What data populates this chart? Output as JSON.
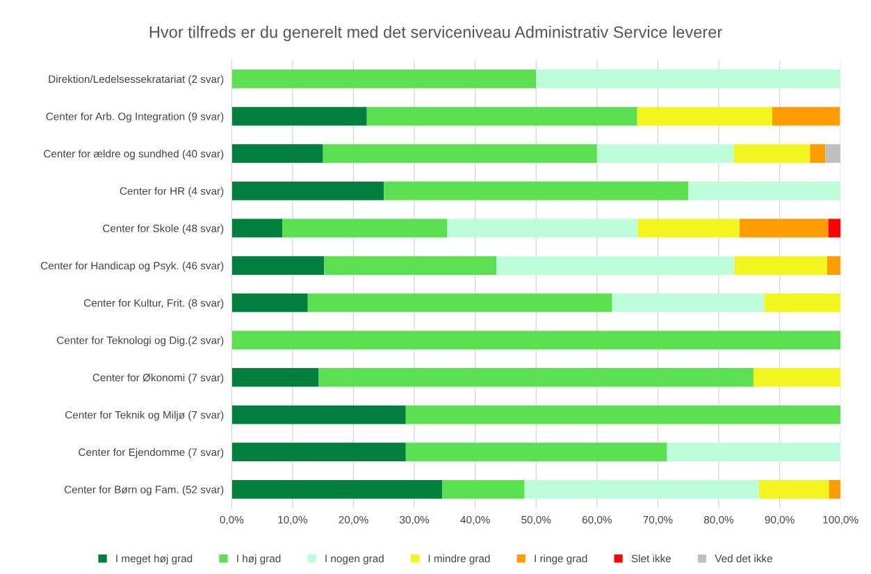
{
  "chart_data": {
    "type": "bar",
    "orientation": "horizontal",
    "stacked": true,
    "title": "Hvor tilfreds er du generelt med det serviceniveau Administrativ Service leverer",
    "categories": [
      "Direktion/Ledelsessekratariat (2 svar)",
      "Center for Arb. Og Integration (9 svar)",
      "Center for ældre og sundhed (40 svar)",
      "Center for HR (4 svar)",
      "Center for Skole (48 svar)",
      "Center for Handicap og Psyk. (46 svar)",
      "Center for Kultur, Frit. (8 svar)",
      "Center for Teknologi og Dig.(2 svar)",
      "Center for Økonomi (7 svar)",
      "Center for Teknik og Miljø (7 svar)",
      "Center for Ejendomme (7 svar)",
      "Center for Børn og Fam. (52 svar)"
    ],
    "series": [
      {
        "name": "I meget høj grad",
        "color": "#00803c",
        "values": [
          0,
          22.2,
          15,
          25,
          8.3,
          15.2,
          12.5,
          0,
          14.3,
          28.6,
          28.6,
          34.6
        ]
      },
      {
        "name": "I høj grad",
        "color": "#5be052",
        "values": [
          50,
          44.4,
          45,
          50,
          27.1,
          28.3,
          50,
          100,
          71.4,
          71.4,
          42.9,
          13.5
        ]
      },
      {
        "name": "I nogen grad",
        "color": "#bdfdda",
        "values": [
          50,
          0,
          22.5,
          25,
          31.3,
          39.1,
          25,
          0,
          0,
          0,
          28.6,
          38.5
        ]
      },
      {
        "name": "I mindre grad",
        "color": "#f2f51e",
        "values": [
          0,
          22.2,
          12.5,
          0,
          16.7,
          15.2,
          12.5,
          0,
          14.3,
          0,
          0,
          11.5
        ]
      },
      {
        "name": "I ringe grad",
        "color": "#ff9c00",
        "values": [
          0,
          11.1,
          2.5,
          0,
          14.6,
          2.2,
          0,
          0,
          0,
          0,
          0,
          1.9
        ]
      },
      {
        "name": "Slet ikke",
        "color": "#ff0000",
        "values": [
          0,
          0,
          0,
          0,
          2.1,
          0,
          0,
          0,
          0,
          0,
          0,
          0
        ]
      },
      {
        "name": "Ved det ikke",
        "color": "#bfbfbf",
        "values": [
          0,
          0,
          2.5,
          0,
          0,
          0,
          0,
          0,
          0,
          0,
          0,
          0
        ]
      }
    ],
    "xlim": [
      0,
      100
    ],
    "xticks": [
      {
        "value": 0,
        "label": "0,0%"
      },
      {
        "value": 10,
        "label": "10,0%"
      },
      {
        "value": 20,
        "label": "20,0%"
      },
      {
        "value": 30,
        "label": "30,0%"
      },
      {
        "value": 40,
        "label": "40,0%"
      },
      {
        "value": 50,
        "label": "50,0%"
      },
      {
        "value": 60,
        "label": "60,0%"
      },
      {
        "value": 70,
        "label": "70,0%"
      },
      {
        "value": 80,
        "label": "80,0%"
      },
      {
        "value": 90,
        "label": "90,0%"
      },
      {
        "value": 100,
        "label": "100,0%"
      }
    ],
    "grid": "x",
    "legend": "bottom"
  }
}
